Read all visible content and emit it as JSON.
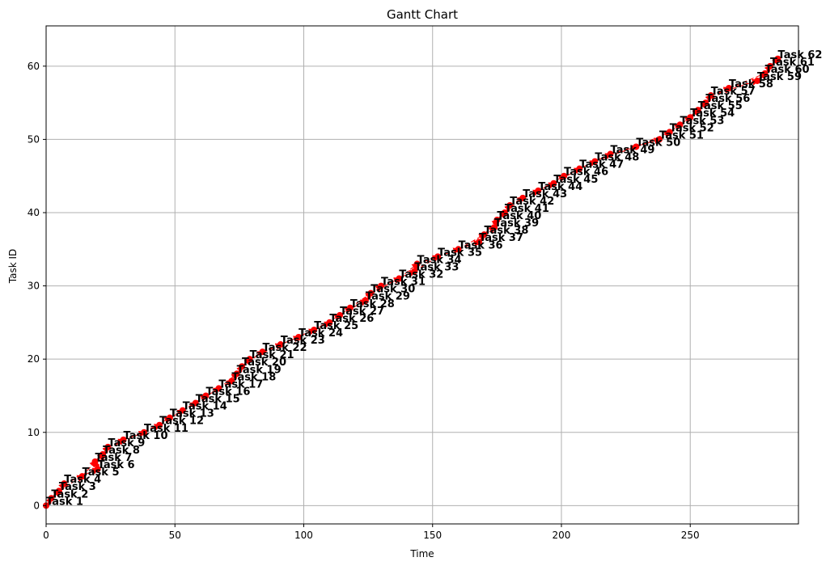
{
  "chart_data": {
    "type": "scatter",
    "title": "Gantt Chart",
    "xlabel": "Time",
    "ylabel": "Task ID",
    "xlim": [
      0,
      292
    ],
    "ylim": [
      -2.5,
      65.5
    ],
    "xticks": [
      0,
      50,
      100,
      150,
      200,
      250
    ],
    "yticks": [
      0,
      10,
      20,
      30,
      40,
      50,
      60
    ],
    "grid": true,
    "colors": {
      "marker": "#ff0000",
      "arrow": "#ff0000",
      "grid": "#b0b0b0",
      "label": "#000000"
    },
    "tasks": [
      {
        "id": 0,
        "label": "Task 1",
        "x": 0
      },
      {
        "id": 1,
        "label": "Task 2",
        "x": 2
      },
      {
        "id": 2,
        "label": "Task 3",
        "x": 5
      },
      {
        "id": 3,
        "label": "Task 4",
        "x": 7
      },
      {
        "id": 4,
        "label": "Task 5",
        "x": 14
      },
      {
        "id": 5,
        "label": "Task 6",
        "x": 20
      },
      {
        "id": 6,
        "label": "Task 7",
        "x": 19
      },
      {
        "id": 7,
        "label": "Task 8",
        "x": 22
      },
      {
        "id": 8,
        "label": "Task 9",
        "x": 24
      },
      {
        "id": 9,
        "label": "Task 10",
        "x": 30
      },
      {
        "id": 10,
        "label": "Task 11",
        "x": 38
      },
      {
        "id": 11,
        "label": "Task 12",
        "x": 44
      },
      {
        "id": 12,
        "label": "Task 13",
        "x": 48
      },
      {
        "id": 13,
        "label": "Task 14",
        "x": 53
      },
      {
        "id": 14,
        "label": "Task 15",
        "x": 58
      },
      {
        "id": 15,
        "label": "Task 16",
        "x": 62
      },
      {
        "id": 16,
        "label": "Task 17",
        "x": 67
      },
      {
        "id": 17,
        "label": "Task 18",
        "x": 72
      },
      {
        "id": 18,
        "label": "Task 19",
        "x": 74
      },
      {
        "id": 19,
        "label": "Task 20",
        "x": 76
      },
      {
        "id": 20,
        "label": "Task 21",
        "x": 79
      },
      {
        "id": 21,
        "label": "Task 22",
        "x": 84
      },
      {
        "id": 22,
        "label": "Task 23",
        "x": 91
      },
      {
        "id": 23,
        "label": "Task 24",
        "x": 98
      },
      {
        "id": 24,
        "label": "Task 25",
        "x": 104
      },
      {
        "id": 25,
        "label": "Task 26",
        "x": 110
      },
      {
        "id": 26,
        "label": "Task 27",
        "x": 114
      },
      {
        "id": 27,
        "label": "Task 28",
        "x": 118
      },
      {
        "id": 28,
        "label": "Task 29",
        "x": 124
      },
      {
        "id": 29,
        "label": "Task 30",
        "x": 126
      },
      {
        "id": 30,
        "label": "Task 31",
        "x": 130
      },
      {
        "id": 31,
        "label": "Task 32",
        "x": 137
      },
      {
        "id": 32,
        "label": "Task 33",
        "x": 143
      },
      {
        "id": 33,
        "label": "Task 34",
        "x": 144
      },
      {
        "id": 34,
        "label": "Task 35",
        "x": 152
      },
      {
        "id": 35,
        "label": "Task 36",
        "x": 160
      },
      {
        "id": 36,
        "label": "Task 37",
        "x": 168
      },
      {
        "id": 37,
        "label": "Task 38",
        "x": 170
      },
      {
        "id": 38,
        "label": "Task 39",
        "x": 174
      },
      {
        "id": 39,
        "label": "Task 40",
        "x": 175
      },
      {
        "id": 40,
        "label": "Task 41",
        "x": 178
      },
      {
        "id": 41,
        "label": "Task 42",
        "x": 180
      },
      {
        "id": 42,
        "label": "Task 43",
        "x": 185
      },
      {
        "id": 43,
        "label": "Task 44",
        "x": 191
      },
      {
        "id": 44,
        "label": "Task 45",
        "x": 197
      },
      {
        "id": 45,
        "label": "Task 46",
        "x": 201
      },
      {
        "id": 46,
        "label": "Task 47",
        "x": 207
      },
      {
        "id": 47,
        "label": "Task 48",
        "x": 213
      },
      {
        "id": 48,
        "label": "Task 49",
        "x": 219
      },
      {
        "id": 49,
        "label": "Task 50",
        "x": 229
      },
      {
        "id": 50,
        "label": "Task 51",
        "x": 238
      },
      {
        "id": 51,
        "label": "Task 52",
        "x": 242
      },
      {
        "id": 52,
        "label": "Task 53",
        "x": 246
      },
      {
        "id": 53,
        "label": "Task 54",
        "x": 250
      },
      {
        "id": 54,
        "label": "Task 55",
        "x": 253
      },
      {
        "id": 55,
        "label": "Task 56",
        "x": 256
      },
      {
        "id": 56,
        "label": "Task 57",
        "x": 258
      },
      {
        "id": 57,
        "label": "Task 58",
        "x": 265
      },
      {
        "id": 58,
        "label": "Task 59",
        "x": 276
      },
      {
        "id": 59,
        "label": "Task 60",
        "x": 279
      },
      {
        "id": 60,
        "label": "Task 61",
        "x": 281
      },
      {
        "id": 61,
        "label": "Task 62",
        "x": 284
      }
    ]
  }
}
